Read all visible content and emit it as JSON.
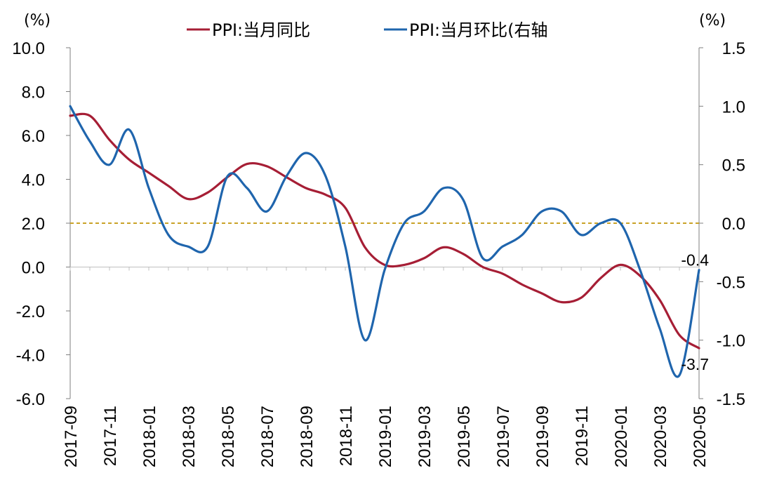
{
  "chart_data": {
    "type": "line",
    "title": "",
    "legend_position": "top",
    "grid": false,
    "left_axis": {
      "unit_label": "(%)",
      "ylim": [
        -6.0,
        10.0
      ],
      "ticks": [
        10.0,
        8.0,
        6.0,
        4.0,
        2.0,
        0.0,
        -2.0,
        -4.0,
        -6.0
      ],
      "tick_labels": [
        "10.0",
        "8.0",
        "6.0",
        "4.0",
        "2.0",
        "0.0",
        "-2.0",
        "-4.0",
        "-6.0"
      ]
    },
    "right_axis": {
      "unit_label": "(%)",
      "ylim": [
        -1.5,
        1.5
      ],
      "ticks": [
        1.5,
        1.0,
        0.5,
        0.0,
        -0.5,
        -1.0,
        -1.5
      ],
      "tick_labels": [
        "1.5",
        "1.0",
        "0.5",
        "0.0",
        "-0.5",
        "-1.0",
        "-1.5"
      ]
    },
    "x_tick_labels": [
      "2017-09",
      "2017-11",
      "2018-01",
      "2018-03",
      "2018-05",
      "2018-07",
      "2018-09",
      "2018-11",
      "2019-01",
      "2019-03",
      "2019-05",
      "2019-07",
      "2019-09",
      "2019-11",
      "2020-01",
      "2020-03",
      "2020-05"
    ],
    "categories": [
      "2017-09",
      "2017-10",
      "2017-11",
      "2017-12",
      "2018-01",
      "2018-02",
      "2018-03",
      "2018-04",
      "2018-05",
      "2018-06",
      "2018-07",
      "2018-08",
      "2018-09",
      "2018-10",
      "2018-11",
      "2018-12",
      "2019-01",
      "2019-02",
      "2019-03",
      "2019-04",
      "2019-05",
      "2019-06",
      "2019-07",
      "2019-08",
      "2019-09",
      "2019-10",
      "2019-11",
      "2019-12",
      "2020-01",
      "2020-02",
      "2020-03",
      "2020-04",
      "2020-05"
    ],
    "series": [
      {
        "name": "PPI:当月同比",
        "axis": "left",
        "color": "#a61e35",
        "values": [
          6.9,
          6.9,
          5.8,
          4.9,
          4.3,
          3.7,
          3.1,
          3.4,
          4.1,
          4.7,
          4.6,
          4.1,
          3.6,
          3.3,
          2.7,
          0.9,
          0.1,
          0.1,
          0.4,
          0.9,
          0.6,
          0.0,
          -0.3,
          -0.8,
          -1.2,
          -1.6,
          -1.4,
          -0.5,
          0.1,
          -0.4,
          -1.5,
          -3.1,
          -3.7
        ]
      },
      {
        "name": "PPI:当月环比(右轴",
        "axis": "right",
        "color": "#1f65ad",
        "values": [
          1.0,
          0.7,
          0.5,
          0.8,
          0.3,
          -0.1,
          -0.2,
          -0.2,
          0.4,
          0.3,
          0.1,
          0.4,
          0.6,
          0.4,
          -0.2,
          -1.0,
          -0.4,
          0.0,
          0.1,
          0.3,
          0.2,
          -0.3,
          -0.2,
          -0.1,
          0.1,
          0.1,
          -0.1,
          0.0,
          0.0,
          -0.4,
          -0.9,
          -1.3,
          -0.4
        ]
      }
    ],
    "reference_line": {
      "axis": "left",
      "value": 2.0,
      "color": "#c9a227"
    },
    "annotations": [
      {
        "text": "-0.4",
        "series": 1,
        "category": "2020-05"
      },
      {
        "text": "-3.7",
        "series": 0,
        "category": "2020-05"
      }
    ]
  }
}
